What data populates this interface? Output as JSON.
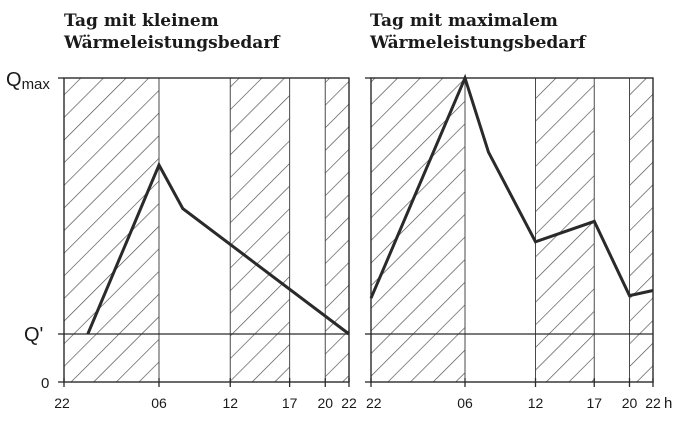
{
  "chart_data": [
    {
      "type": "line",
      "title_lines": [
        "Tag mit kleinem",
        "Wärmeleistungsbedarf"
      ],
      "x_ticks": [
        "22",
        "06",
        "12",
        "17",
        "20",
        "22"
      ],
      "y_ticks": [
        "Qmax",
        "Q'",
        "0"
      ],
      "hatched_periods": [
        [
          "22",
          "06"
        ],
        [
          "12",
          "17"
        ],
        [
          "20",
          "22"
        ]
      ],
      "series": [
        {
          "points": [
            {
              "x": "00",
              "y": 0
            },
            {
              "x": "06",
              "y": 0.66
            },
            {
              "x": "08",
              "y": 0.49
            },
            {
              "x": "22",
              "y": 0
            }
          ]
        }
      ]
    },
    {
      "type": "line",
      "title_lines": [
        "Tag mit maximalem",
        "Wärmeleistungsbedarf"
      ],
      "x_ticks": [
        "22",
        "06",
        "12",
        "17",
        "20",
        "22"
      ],
      "y_ticks": [
        "Qmax",
        "Q'",
        "0"
      ],
      "x_unit": "h",
      "hatched_periods": [
        [
          "22",
          "06"
        ],
        [
          "12",
          "17"
        ],
        [
          "20",
          "22"
        ]
      ],
      "series": [
        {
          "points": [
            {
              "x": "22",
              "y": 0.14
            },
            {
              "x": "06",
              "y": 1.0
            },
            {
              "x": "08",
              "y": 0.71
            },
            {
              "x": "12",
              "y": 0.36
            },
            {
              "x": "17",
              "y": 0.44
            },
            {
              "x": "20",
              "y": 0.15
            },
            {
              "x": "22",
              "y": 0.17
            }
          ]
        }
      ]
    }
  ],
  "colors": {
    "ink": "#2a2a2a",
    "hatch": "#4a4a4a"
  }
}
